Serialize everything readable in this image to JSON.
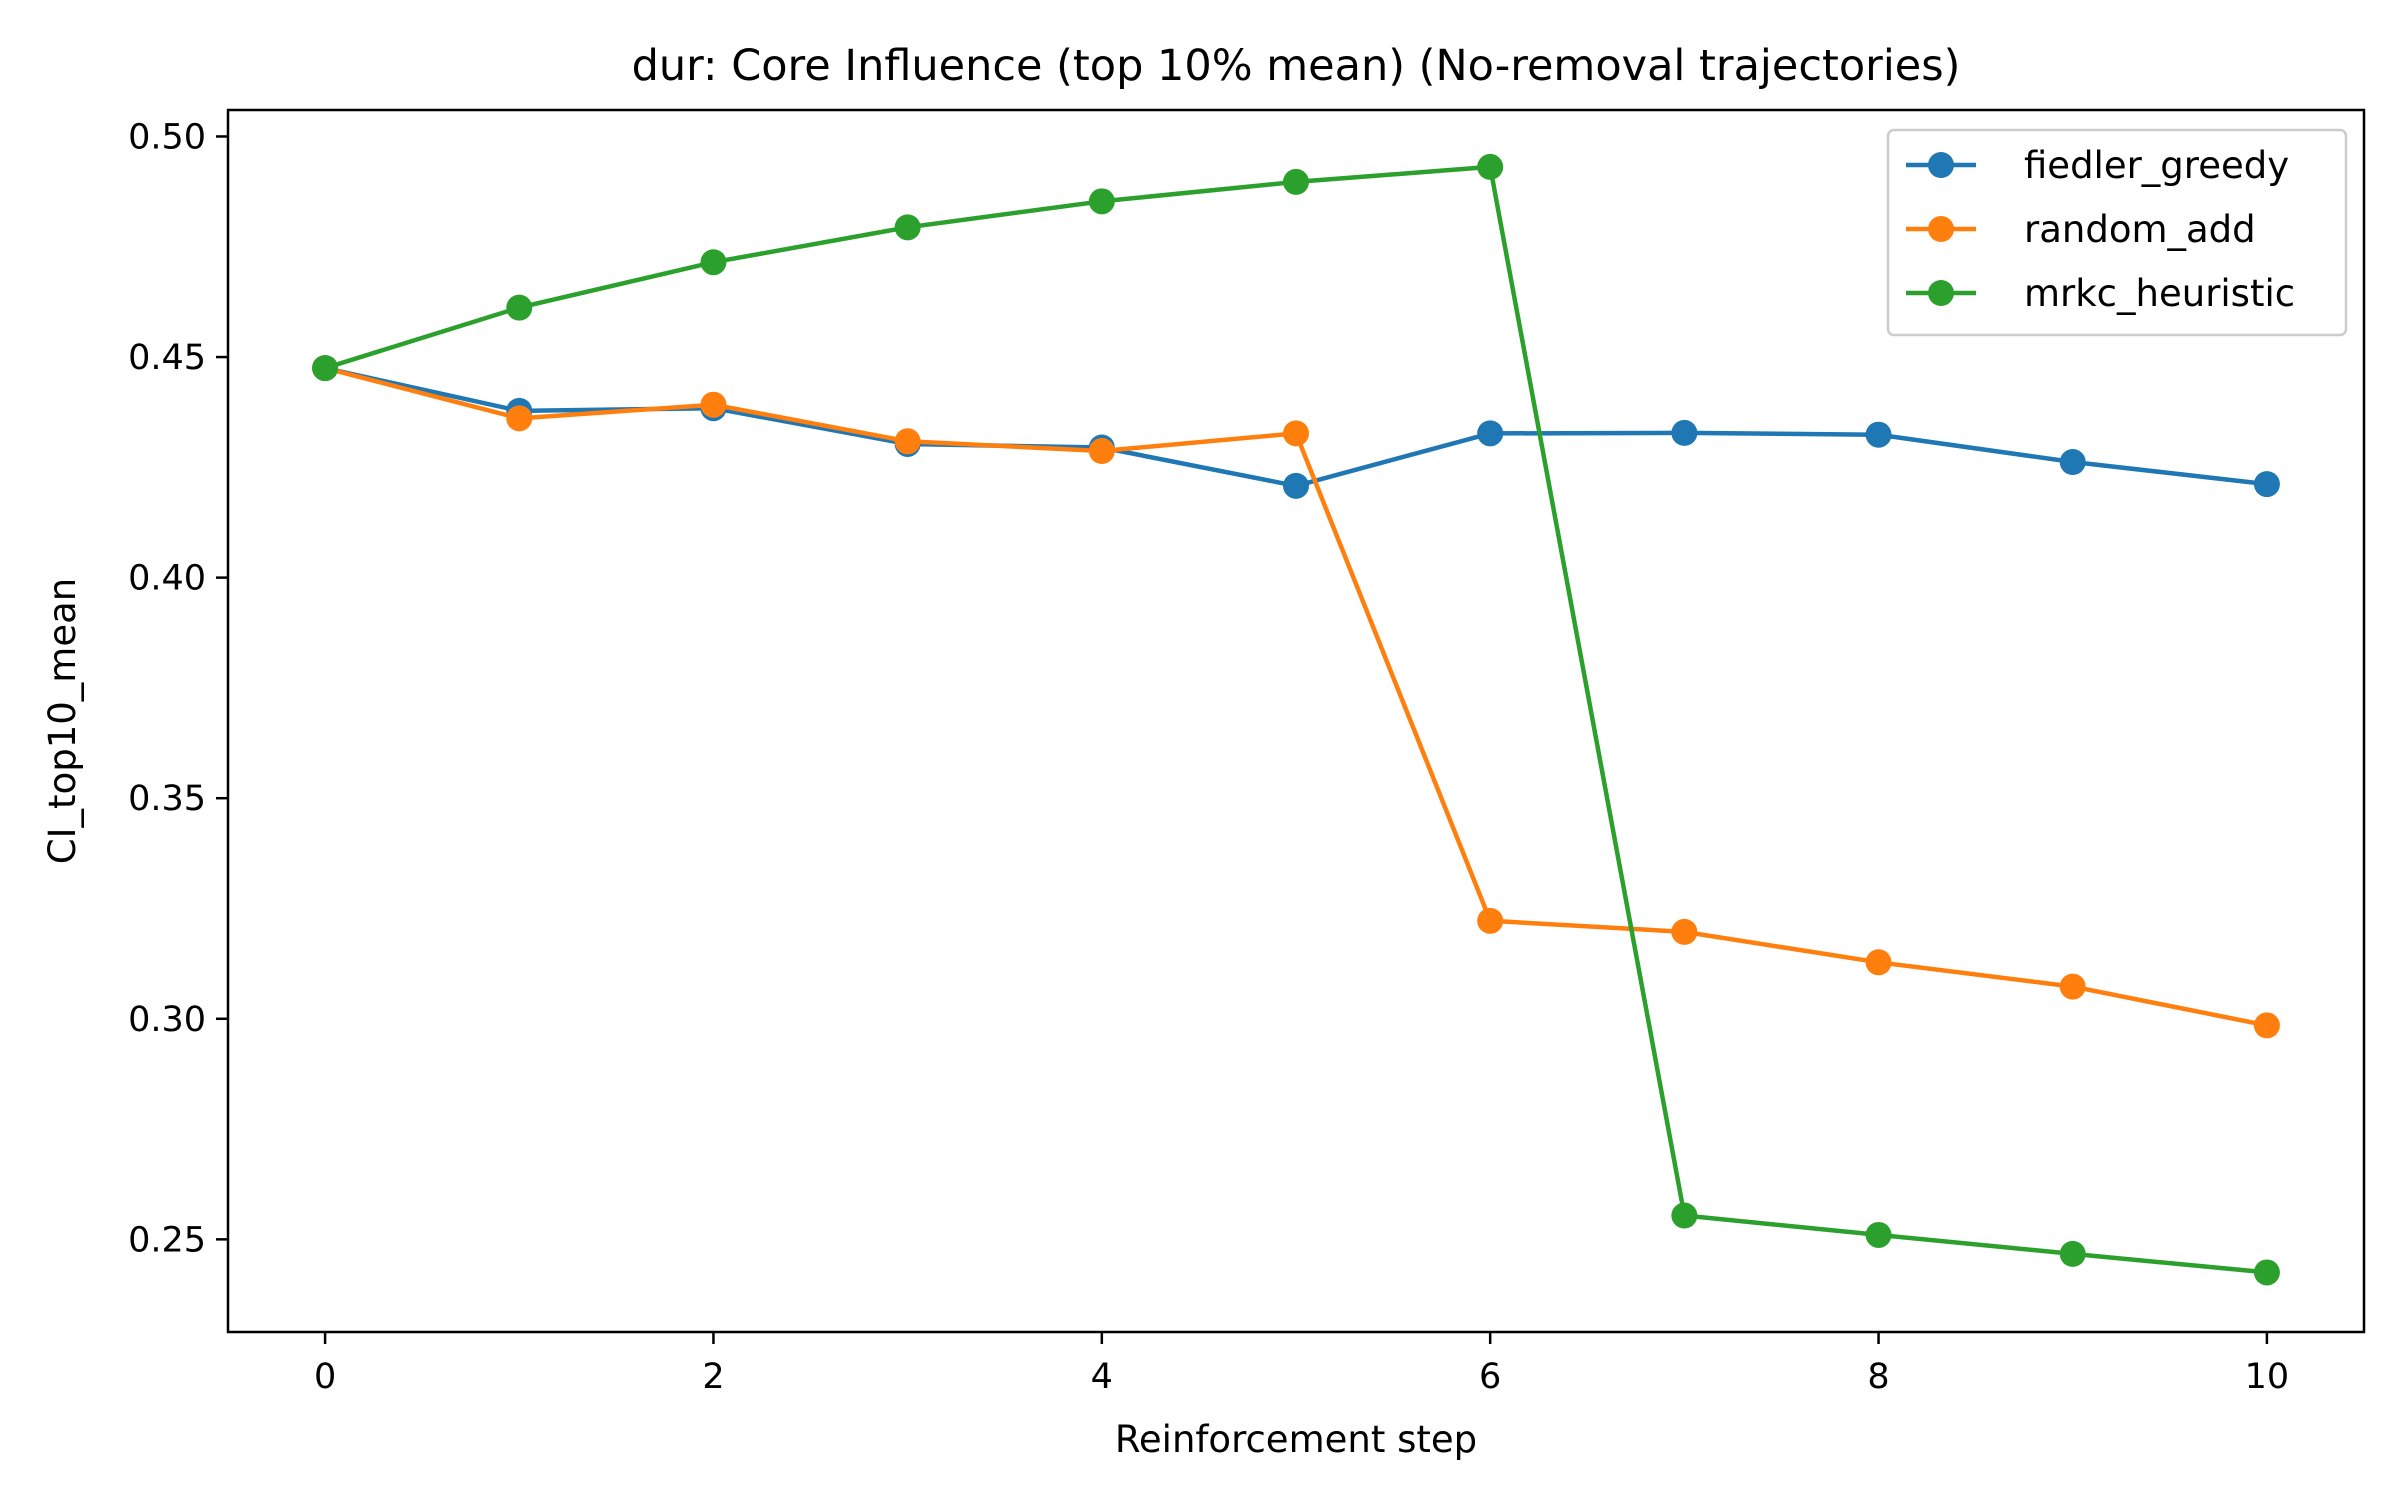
{
  "chart_data": {
    "type": "line",
    "title": "dur: Core Influence (top 10% mean) (No-removal trajectories)",
    "xlabel": "Reinforcement step",
    "ylabel": "CI_top10_mean",
    "xlim": [
      -0.5,
      10.5
    ],
    "ylim": [
      0.229,
      0.506
    ],
    "xticks": [
      0,
      2,
      4,
      6,
      8,
      10
    ],
    "xtick_labels": [
      "0",
      "2",
      "4",
      "6",
      "8",
      "10"
    ],
    "yticks": [
      0.25,
      0.3,
      0.35,
      0.4,
      0.45,
      0.5
    ],
    "ytick_labels": [
      "0.25",
      "0.30",
      "0.35",
      "0.40",
      "0.45",
      "0.50"
    ],
    "grid": false,
    "legend_position": "top-right",
    "series": [
      {
        "name": "fiedler_greedy",
        "color": "#1f77b4",
        "x": [
          0,
          1,
          2,
          3,
          4,
          5,
          6,
          7,
          8,
          9,
          10
        ],
        "y": [
          0.4475,
          0.4378,
          0.4384,
          0.4303,
          0.4295,
          0.4208,
          0.4327,
          0.4328,
          0.4324,
          0.4262,
          0.4212
        ]
      },
      {
        "name": "random_add",
        "color": "#ff7f0e",
        "x": [
          0,
          1,
          2,
          3,
          4,
          5,
          6,
          7,
          8,
          9,
          10
        ],
        "y": [
          0.4475,
          0.4361,
          0.4392,
          0.4309,
          0.4287,
          0.4327,
          0.3222,
          0.3197,
          0.3128,
          0.3073,
          0.2985
        ]
      },
      {
        "name": "mrkc_heuristic",
        "color": "#2ca02c",
        "x": [
          0,
          1,
          2,
          3,
          4,
          5,
          6,
          7,
          8,
          9,
          10
        ],
        "y": [
          0.4475,
          0.4612,
          0.4715,
          0.4794,
          0.4853,
          0.4897,
          0.4931,
          0.2554,
          0.251,
          0.2467,
          0.2425
        ]
      }
    ]
  }
}
